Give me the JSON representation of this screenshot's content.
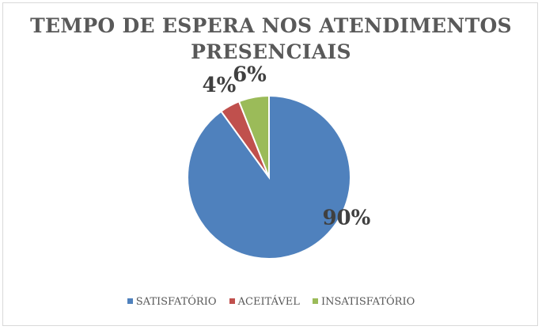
{
  "chart_data": {
    "type": "pie",
    "title": "TEMPO DE ESPERA NOS ATENDIMENTOS PRESENCIAIS",
    "categories": [
      "SATISFATÓRIO",
      "ACEITÁVEL",
      "INSATISFATÓRIO"
    ],
    "values": [
      90,
      4,
      6
    ],
    "data_labels": [
      "90%",
      "4%",
      "6%"
    ],
    "colors": [
      "#4f81bd",
      "#c0504d",
      "#9bbb59"
    ],
    "legend_position": "bottom",
    "start_angle": "12 o'clock, clockwise"
  }
}
